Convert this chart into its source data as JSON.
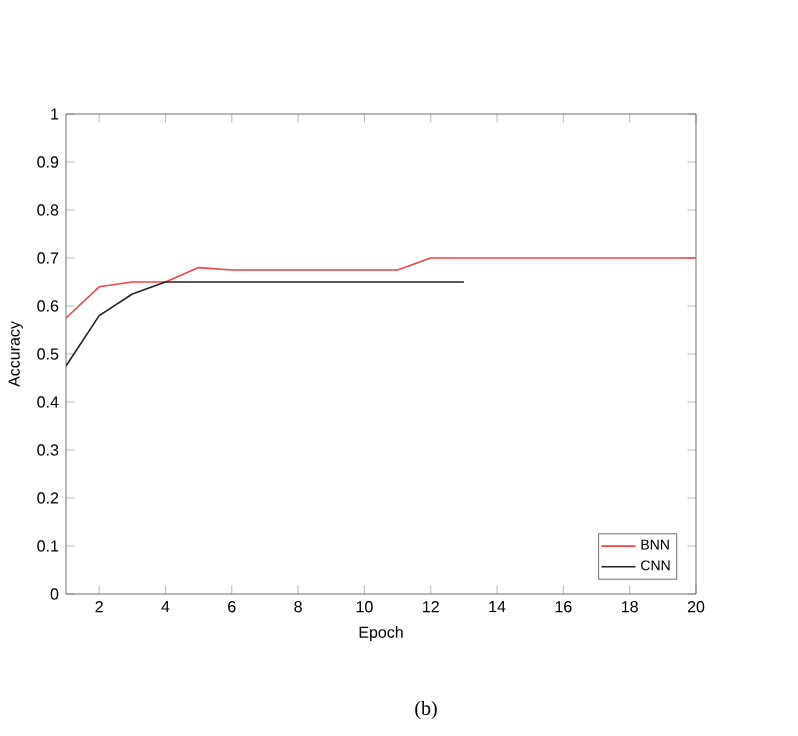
{
  "chart_data": {
    "type": "line",
    "xlabel": "Epoch",
    "ylabel": "Accuracy",
    "annotations": [
      "(b)"
    ],
    "xlim": [
      1,
      20
    ],
    "ylim": [
      0,
      1
    ],
    "xticks": [
      2,
      4,
      6,
      8,
      10,
      12,
      14,
      16,
      18,
      20
    ],
    "yticks": [
      0,
      0.1,
      0.2,
      0.3,
      0.4,
      0.5,
      0.6,
      0.7,
      0.8,
      0.9,
      1
    ],
    "legend": "bottom right",
    "grid": false,
    "marker": "none",
    "line_style": "solid",
    "series": [
      {
        "name": "BNN",
        "color": "#e8474a",
        "x": [
          1,
          2,
          3,
          4,
          5,
          6,
          7,
          8,
          9,
          10,
          11,
          12,
          13,
          14,
          15,
          16,
          17,
          18,
          19,
          20
        ],
        "values": [
          0.575,
          0.64,
          0.65,
          0.65,
          0.68,
          0.675,
          0.675,
          0.675,
          0.675,
          0.675,
          0.675,
          0.7,
          0.7,
          0.7,
          0.7,
          0.7,
          0.7,
          0.7,
          0.7,
          0.7
        ]
      },
      {
        "name": "CNN",
        "color": "#222222",
        "x": [
          1,
          2,
          3,
          4,
          5,
          6,
          7,
          8,
          9,
          10,
          11,
          12,
          13
        ],
        "values": [
          0.475,
          0.58,
          0.625,
          0.65,
          0.65,
          0.65,
          0.65,
          0.65,
          0.65,
          0.65,
          0.65,
          0.65,
          0.65
        ]
      }
    ]
  }
}
